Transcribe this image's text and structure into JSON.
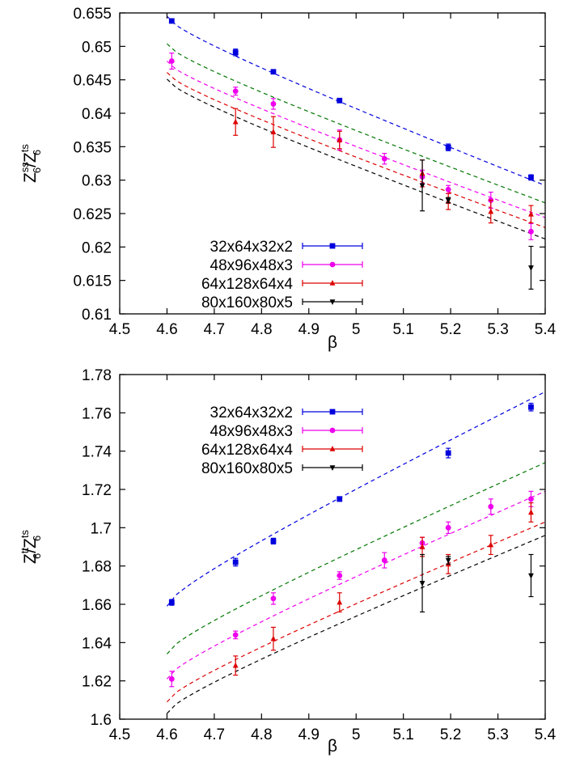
{
  "chart_data": [
    {
      "type": "scatter",
      "title": "",
      "xlabel": "β",
      "ylabel": {
        "base": "Z",
        "sub": "6",
        "sup_num": "ss",
        "sup_den": "ts",
        "sep": "/"
      },
      "xlim": [
        4.5,
        5.4
      ],
      "ylim": [
        0.61,
        0.655
      ],
      "xticks": [
        "4.5",
        "4.6",
        "4.7",
        "4.8",
        "4.9",
        "5",
        "5.1",
        "5.2",
        "5.3",
        "5.4"
      ],
      "yticks": [
        "0.61",
        "0.615",
        "0.62",
        "0.625",
        "0.63",
        "0.635",
        "0.64",
        "0.645",
        "0.65",
        "0.655"
      ],
      "legend_position": "bottom-left",
      "grid": false,
      "series": [
        {
          "name": "32x64x32x2",
          "color": "#0000dd",
          "marker": "square",
          "x": [
            4.61,
            4.745,
            4.825,
            4.965,
            5.195,
            5.37
          ],
          "y": [
            0.6538,
            0.6491,
            0.6462,
            0.6419,
            0.6349,
            0.6304
          ],
          "err": [
            0.0003,
            0.0005,
            0.0003,
            0.0002,
            0.0005,
            0.0004
          ]
        },
        {
          "name": "48x96x48x3",
          "color": "#ee00ee",
          "marker": "circle",
          "x": [
            4.61,
            4.745,
            4.825,
            4.965,
            5.06,
            5.14,
            5.195,
            5.285,
            5.37
          ],
          "y": [
            0.6478,
            0.6433,
            0.6414,
            0.636,
            0.6332,
            0.6305,
            0.6286,
            0.627,
            0.6223
          ],
          "err": [
            0.0012,
            0.0006,
            0.0008,
            0.0015,
            0.0008,
            0.001,
            0.0006,
            0.0012,
            0.0012
          ]
        },
        {
          "name": "64x128x64x4",
          "color": "#dd0000",
          "marker": "triangle-up",
          "x": [
            4.745,
            4.825,
            4.965,
            5.14,
            5.195,
            5.285,
            5.37
          ],
          "y": [
            0.6387,
            0.6372,
            0.636,
            0.631,
            0.6268,
            0.6253,
            0.6249
          ],
          "err": [
            0.002,
            0.0023,
            0.0013,
            0.002,
            0.0012,
            0.0017,
            0.0013
          ]
        },
        {
          "name": "80x160x80x5",
          "color": "#000000",
          "marker": "triangle-down",
          "x": [
            5.14,
            5.195,
            5.37
          ],
          "y": [
            0.6292,
            0.627,
            0.6169
          ],
          "err": [
            0.0038,
            0.0004,
            0.0032
          ]
        }
      ],
      "fits": [
        {
          "color": "#0000dd",
          "x": [
            4.6,
            5.4
          ],
          "y": [
            0.6545,
            0.6292
          ]
        },
        {
          "color": "#007700",
          "x": [
            4.6,
            5.4
          ],
          "y": [
            0.6504,
            0.6266
          ]
        },
        {
          "color": "#ee00ee",
          "x": [
            4.6,
            5.4
          ],
          "y": [
            0.6478,
            0.6244
          ]
        },
        {
          "color": "#dd0000",
          "x": [
            4.6,
            5.4
          ],
          "y": [
            0.6461,
            0.6229
          ]
        },
        {
          "color": "#000000",
          "x": [
            4.6,
            5.4
          ],
          "y": [
            0.6451,
            0.6212
          ]
        }
      ]
    },
    {
      "type": "scatter",
      "title": "",
      "xlabel": "β",
      "ylabel": {
        "base": "Z",
        "sub": "6",
        "sup_num": "tt",
        "sup_den": "ts",
        "sep": "/"
      },
      "xlim": [
        4.5,
        5.4
      ],
      "ylim": [
        1.6,
        1.78
      ],
      "xticks": [
        "4.5",
        "4.6",
        "4.7",
        "4.8",
        "4.9",
        "5",
        "5.1",
        "5.2",
        "5.3",
        "5.4"
      ],
      "yticks": [
        "1.6",
        "1.62",
        "1.64",
        "1.66",
        "1.68",
        "1.7",
        "1.72",
        "1.74",
        "1.76",
        "1.78"
      ],
      "legend_position": "top-left",
      "grid": false,
      "series": [
        {
          "name": "32x64x32x2",
          "color": "#0000dd",
          "marker": "square",
          "x": [
            4.61,
            4.745,
            4.825,
            4.965,
            5.195,
            5.37
          ],
          "y": [
            1.661,
            1.682,
            1.693,
            1.715,
            1.739,
            1.763
          ],
          "err": [
            0.0015,
            0.002,
            0.0015,
            0.0012,
            0.0025,
            0.002
          ]
        },
        {
          "name": "48x96x48x3",
          "color": "#ee00ee",
          "marker": "circle",
          "x": [
            4.61,
            4.745,
            4.825,
            4.965,
            5.06,
            5.14,
            5.195,
            5.285,
            5.37
          ],
          "y": [
            1.621,
            1.644,
            1.663,
            1.675,
            1.683,
            1.692,
            1.7,
            1.711,
            1.715
          ],
          "err": [
            0.004,
            0.002,
            0.003,
            0.002,
            0.004,
            0.003,
            0.003,
            0.004,
            0.004
          ]
        },
        {
          "name": "64x128x64x4",
          "color": "#dd0000",
          "marker": "triangle-up",
          "x": [
            4.745,
            4.825,
            4.965,
            5.14,
            5.195,
            5.285,
            5.37
          ],
          "y": [
            1.628,
            1.642,
            1.661,
            1.69,
            1.681,
            1.691,
            1.708
          ],
          "err": [
            0.005,
            0.006,
            0.005,
            0.005,
            0.005,
            0.005,
            0.005
          ]
        },
        {
          "name": "80x160x80x5",
          "color": "#000000",
          "marker": "triangle-down",
          "x": [
            5.14,
            5.195,
            5.37
          ],
          "y": [
            1.671,
            1.683,
            1.675
          ],
          "err": [
            0.015,
            0.002,
            0.011
          ]
        }
      ],
      "fits": [
        {
          "color": "#0000dd",
          "x": [
            4.6,
            5.4
          ],
          "y": [
            1.659,
            1.771
          ]
        },
        {
          "color": "#007700",
          "x": [
            4.6,
            5.4
          ],
          "y": [
            1.634,
            1.734
          ]
        },
        {
          "color": "#ee00ee",
          "x": [
            4.6,
            5.4
          ],
          "y": [
            1.621,
            1.719
          ]
        },
        {
          "color": "#dd0000",
          "x": [
            4.6,
            5.4
          ],
          "y": [
            1.609,
            1.703
          ]
        },
        {
          "color": "#000000",
          "x": [
            4.6,
            5.4
          ],
          "y": [
            1.603,
            1.696
          ]
        }
      ]
    }
  ]
}
